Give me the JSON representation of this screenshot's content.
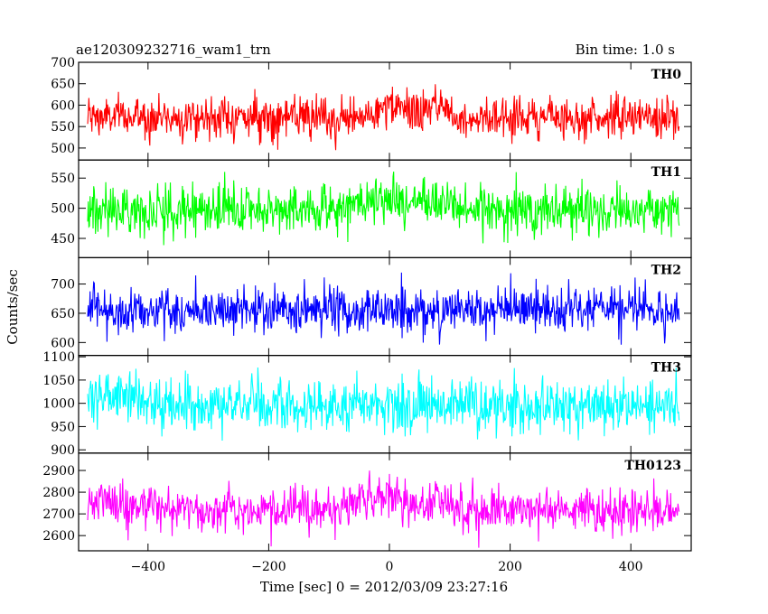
{
  "header": {
    "title": "ae120309232716_wam1_trn",
    "bin_time": "Bin time: 1.0 s"
  },
  "chart_data": {
    "type": "line",
    "title": "ae120309232716_wam1_trn",
    "subtitle": "Bin time: 1.0 s",
    "xlabel": "Time [sec] 0 = 2012/03/09 23:27:16",
    "ylabel": "Counts/sec",
    "xlim": [
      -515,
      500
    ],
    "x_range": [
      -500,
      480
    ],
    "x_ticks": [
      -400,
      -200,
      0,
      200,
      400
    ],
    "x_tick_labels": [
      "−400",
      "−200",
      "0",
      "200",
      "400"
    ],
    "grid": false,
    "panels": [
      {
        "name": "TH0",
        "color": "#ff0000",
        "ylim": [
          472,
          700
        ],
        "yticks": [
          500,
          550,
          600,
          650,
          700
        ],
        "mean": 572,
        "noise": 24,
        "features": [
          {
            "x": 0,
            "dy": 25,
            "w": 40
          },
          {
            "x": 80,
            "dy": 30,
            "w": 12
          },
          {
            "x": -60,
            "dy": -12,
            "w": 50
          }
        ]
      },
      {
        "name": "TH1",
        "color": "#00ff00",
        "ylim": [
          418,
          580
        ],
        "yticks": [
          450,
          500,
          550
        ],
        "mean": 497,
        "noise": 20,
        "features": [
          {
            "x": 0,
            "dy": 15,
            "w": 60
          },
          {
            "x": 80,
            "dy": 10,
            "w": 20
          }
        ]
      },
      {
        "name": "TH2",
        "color": "#0000ff",
        "ylim": [
          578,
          745
        ],
        "yticks": [
          600,
          650,
          700
        ],
        "mean": 655,
        "noise": 20,
        "features": []
      },
      {
        "name": "TH3",
        "color": "#00ffff",
        "ylim": [
          893,
          1103
        ],
        "yticks": [
          900,
          950,
          1000,
          1050,
          1100
        ],
        "mean": 995,
        "noise": 28,
        "features": [
          {
            "x": -470,
            "dy": 25,
            "w": 40
          }
        ]
      },
      {
        "name": "TH0123",
        "color": "#ff00ff",
        "ylim": [
          2530,
          2980
        ],
        "yticks": [
          2600,
          2700,
          2800,
          2900
        ],
        "mean": 2720,
        "noise": 50,
        "features": [
          {
            "x": 0,
            "dy": 50,
            "w": 40
          },
          {
            "x": 80,
            "dy": 60,
            "w": 12
          },
          {
            "x": -470,
            "dy": 40,
            "w": 40
          }
        ]
      }
    ]
  }
}
